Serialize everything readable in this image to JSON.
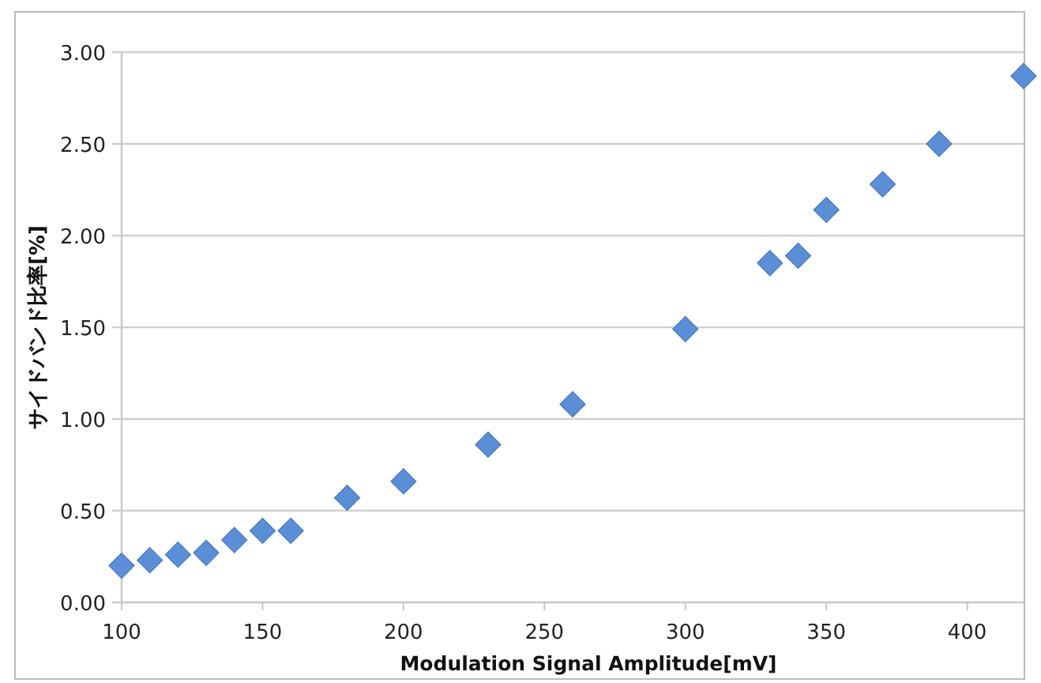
{
  "chart_data": {
    "type": "scatter",
    "xlabel": "Modulation Signal Amplitude[mV]",
    "ylabel": "サイドバンド比率[%]",
    "x": [
      100,
      110,
      120,
      130,
      140,
      150,
      160,
      180,
      200,
      230,
      260,
      300,
      330,
      340,
      350,
      370,
      390,
      420
    ],
    "values": [
      0.2,
      0.23,
      0.26,
      0.27,
      0.34,
      0.39,
      0.39,
      0.57,
      0.66,
      0.86,
      1.08,
      1.49,
      1.85,
      1.89,
      2.14,
      2.28,
      2.5,
      2.87
    ],
    "color": "#5a8fd8",
    "marker": "diamond",
    "grid": "y",
    "xlim": [
      100,
      420
    ],
    "ylim": [
      0,
      3
    ],
    "xticks": [
      100,
      150,
      200,
      250,
      300,
      350,
      400
    ],
    "yticks": [
      {
        "value": 0,
        "label": "0.00"
      },
      {
        "value": 0.5,
        "label": "0.50"
      },
      {
        "value": 1,
        "label": "1.00"
      },
      {
        "value": 1.5,
        "label": "1.50"
      },
      {
        "value": 2,
        "label": "2.00"
      },
      {
        "value": 2.5,
        "label": "2.50"
      },
      {
        "value": 3,
        "label": "3.00"
      }
    ]
  }
}
